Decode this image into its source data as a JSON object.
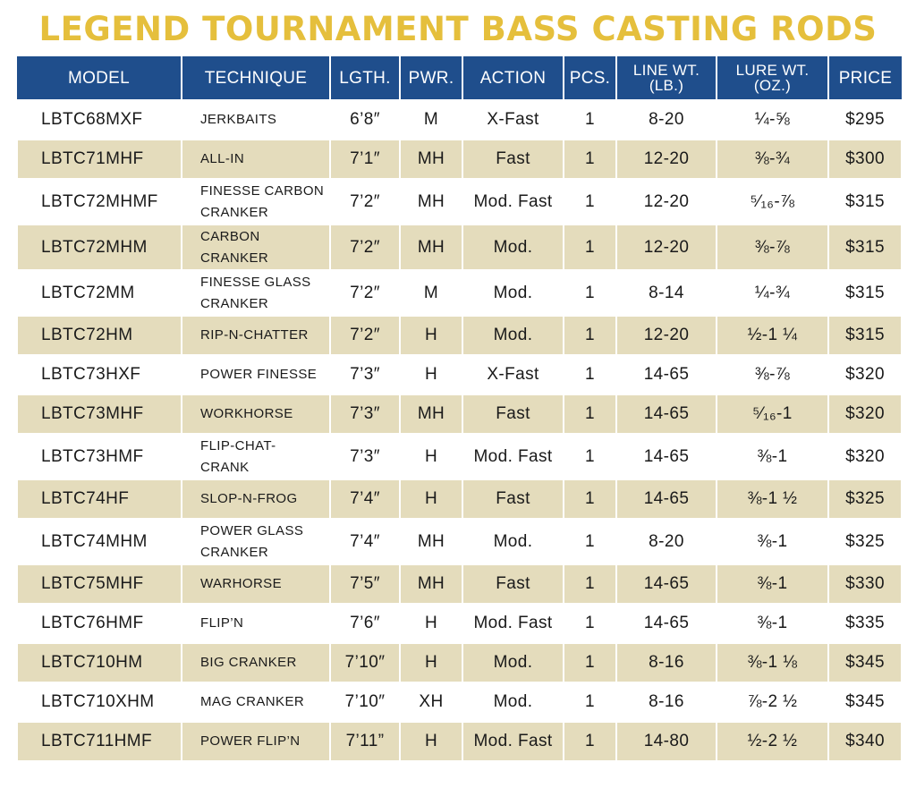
{
  "title": "LEGEND TOURNAMENT BASS CASTING RODS",
  "headers": {
    "model": "MODEL",
    "technique": "TECHNIQUE",
    "length": "LGTH.",
    "power": "PWR.",
    "action": "ACTION",
    "pieces": "PCS.",
    "line_wt_1": "LINE WT.",
    "line_wt_2": "(LB.)",
    "lure_wt_1": "LURE WT.",
    "lure_wt_2": "(OZ.)",
    "price": "PRICE"
  },
  "rows": [
    {
      "model": "LBTC68MXF",
      "technique": "JERKBAITS",
      "length": "6’8″",
      "power": "M",
      "action": "X-Fast",
      "pieces": "1",
      "line_wt": "8-20",
      "lure_wt": "¼-⅝",
      "price": "$295"
    },
    {
      "model": "LBTC71MHF",
      "technique": "ALL-IN",
      "length": "7’1″",
      "power": "MH",
      "action": "Fast",
      "pieces": "1",
      "line_wt": "12-20",
      "lure_wt": "⅜-¾",
      "price": "$300"
    },
    {
      "model": "LBTC72MHMF",
      "technique": "FINESSE CARBON CRANKER",
      "length": "7’2″",
      "power": "MH",
      "action": "Mod. Fast",
      "pieces": "1",
      "line_wt": "12-20",
      "lure_wt": "⁵⁄₁₆-⅞",
      "price": "$315"
    },
    {
      "model": "LBTC72MHM",
      "technique": "CARBON CRANKER",
      "length": "7’2″",
      "power": "MH",
      "action": "Mod.",
      "pieces": "1",
      "line_wt": "12-20",
      "lure_wt": "⅜-⅞",
      "price": "$315"
    },
    {
      "model": "LBTC72MM",
      "technique": "FINESSE GLASS CRANKER",
      "length": "7’2″",
      "power": "M",
      "action": "Mod.",
      "pieces": "1",
      "line_wt": "8-14",
      "lure_wt": "¼-¾",
      "price": "$315"
    },
    {
      "model": "LBTC72HM",
      "technique": "RIP-N-CHATTER",
      "length": "7’2″",
      "power": "H",
      "action": "Mod.",
      "pieces": "1",
      "line_wt": "12-20",
      "lure_wt": "½-1 ¼",
      "price": "$315"
    },
    {
      "model": "LBTC73HXF",
      "technique": "POWER FINESSE",
      "length": "7’3″",
      "power": "H",
      "action": "X-Fast",
      "pieces": "1",
      "line_wt": "14-65",
      "lure_wt": "⅜-⅞",
      "price": "$320"
    },
    {
      "model": "LBTC73MHF",
      "technique": "WORKHORSE",
      "length": "7’3″",
      "power": "MH",
      "action": "Fast",
      "pieces": "1",
      "line_wt": "14-65",
      "lure_wt": "⁵⁄₁₆-1",
      "price": "$320"
    },
    {
      "model": "LBTC73HMF",
      "technique": "FLIP-CHAT- CRANK",
      "length": "7’3″",
      "power": "H",
      "action": "Mod. Fast",
      "pieces": "1",
      "line_wt": "14-65",
      "lure_wt": "⅜-1",
      "price": "$320"
    },
    {
      "model": "LBTC74HF",
      "technique": "SLOP-N-FROG",
      "length": "7’4″",
      "power": "H",
      "action": "Fast",
      "pieces": "1",
      "line_wt": "14-65",
      "lure_wt": "⅜-1 ½",
      "price": "$325"
    },
    {
      "model": "LBTC74MHM",
      "technique": "POWER GLASS CRANKER",
      "length": "7’4″",
      "power": "MH",
      "action": "Mod.",
      "pieces": "1",
      "line_wt": "8-20",
      "lure_wt": "⅜-1",
      "price": "$325"
    },
    {
      "model": "LBTC75MHF",
      "technique": "WARHORSE",
      "length": "7’5″",
      "power": "MH",
      "action": "Fast",
      "pieces": "1",
      "line_wt": "14-65",
      "lure_wt": "⅜-1",
      "price": "$330"
    },
    {
      "model": "LBTC76HMF",
      "technique": "FLIP’N",
      "length": "7’6″",
      "power": "H",
      "action": "Mod. Fast",
      "pieces": "1",
      "line_wt": "14-65",
      "lure_wt": "⅜-1",
      "price": "$335"
    },
    {
      "model": "LBTC710HM",
      "technique": "BIG CRANKER",
      "length": "7’10″",
      "power": "H",
      "action": "Mod.",
      "pieces": "1",
      "line_wt": "8-16",
      "lure_wt": "⅜-1 ⅛",
      "price": "$345"
    },
    {
      "model": "LBTC710XHM",
      "technique": "MAG CRANKER",
      "length": "7’10″",
      "power": "XH",
      "action": "Mod.",
      "pieces": "1",
      "line_wt": "8-16",
      "lure_wt": "⅞-2 ½",
      "price": "$345"
    },
    {
      "model": "LBTC711HMF",
      "technique": "POWER FLIP’N",
      "length": "7’11”",
      "power": "H",
      "action": "Mod. Fast",
      "pieces": "1",
      "line_wt": "14-80",
      "lure_wt": "½-2 ½",
      "price": "$340"
    }
  ]
}
